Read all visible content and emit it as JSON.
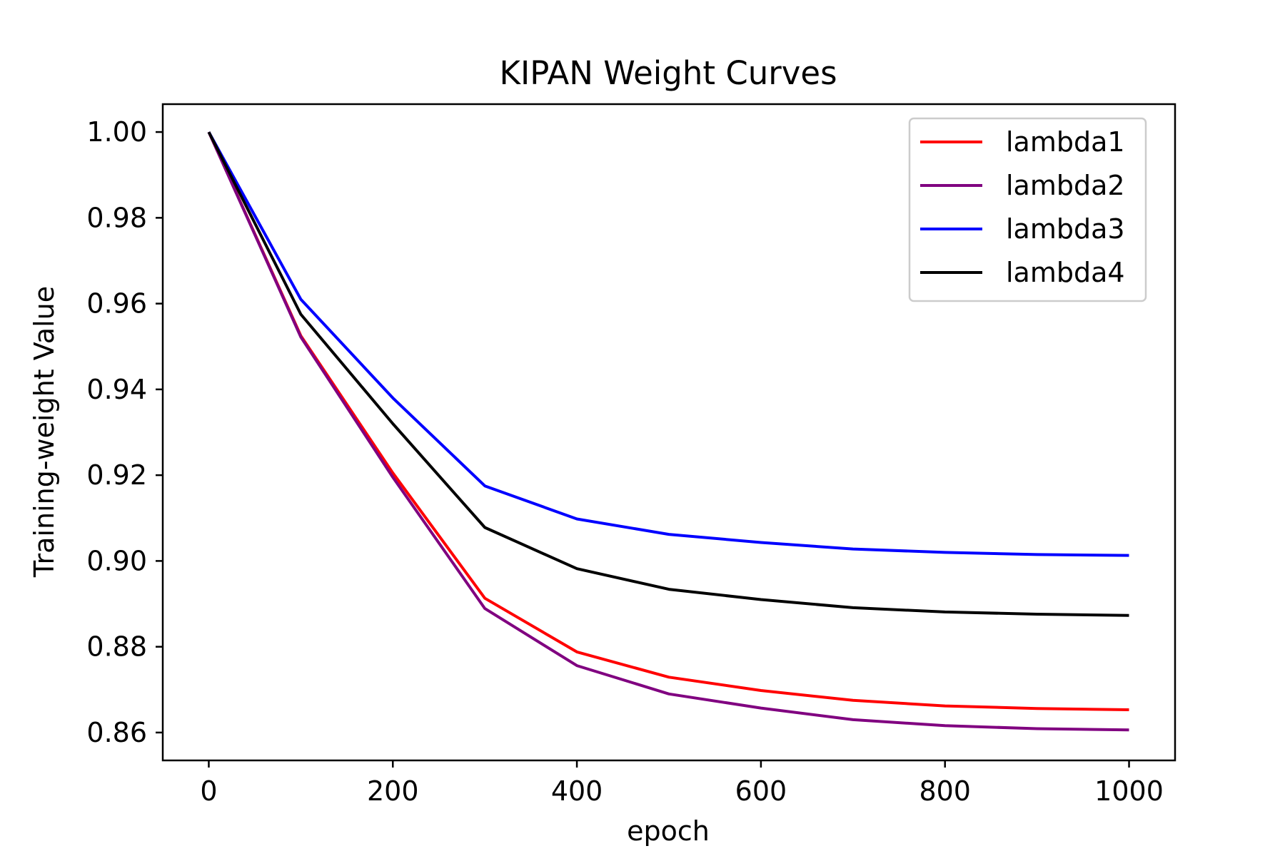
{
  "chart_data": {
    "type": "line",
    "title": "KIPAN Weight Curves",
    "xlabel": "epoch",
    "ylabel": "Training-weight Value",
    "xlim": [
      -50,
      1050
    ],
    "ylim": [
      0.8535,
      1.0065
    ],
    "xticks": [
      0,
      200,
      400,
      600,
      800,
      1000
    ],
    "xtick_labels": [
      "0",
      "200",
      "400",
      "600",
      "800",
      "1000"
    ],
    "yticks": [
      0.86,
      0.88,
      0.9,
      0.92,
      0.94,
      0.96,
      0.98,
      1.0
    ],
    "ytick_labels": [
      "0.86",
      "0.88",
      "0.90",
      "0.92",
      "0.94",
      "0.96",
      "0.98",
      "1.00"
    ],
    "grid": false,
    "legend_position": "top-right",
    "x": [
      0,
      100,
      200,
      300,
      400,
      500,
      600,
      700,
      800,
      900,
      1000
    ],
    "series": [
      {
        "name": "lambda1",
        "color": "#ff0000",
        "values": [
          1.0,
          0.9525,
          0.9205,
          0.8913,
          0.8788,
          0.8729,
          0.8698,
          0.8675,
          0.8662,
          0.8656,
          0.8653
        ]
      },
      {
        "name": "lambda2",
        "color": "#800080",
        "values": [
          1.0,
          0.9522,
          0.9195,
          0.8889,
          0.8756,
          0.869,
          0.8657,
          0.863,
          0.8616,
          0.8609,
          0.8606
        ]
      },
      {
        "name": "lambda3",
        "color": "#0000ff",
        "values": [
          1.0,
          0.961,
          0.938,
          0.9175,
          0.9098,
          0.9062,
          0.9043,
          0.9028,
          0.902,
          0.9015,
          0.9013
        ]
      },
      {
        "name": "lambda4",
        "color": "#000000",
        "values": [
          1.0,
          0.9575,
          0.932,
          0.9078,
          0.8982,
          0.8934,
          0.891,
          0.8891,
          0.8881,
          0.8876,
          0.8873
        ]
      }
    ]
  }
}
